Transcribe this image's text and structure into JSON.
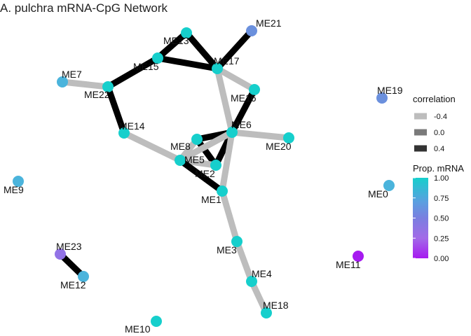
{
  "title": "A. pulchra mRNA-CpG Network",
  "legend": {
    "correlation": {
      "title": "correlation",
      "items": [
        {
          "label": "-0.4",
          "color": "#bdbdbd"
        },
        {
          "label": "0.0",
          "color": "#7a7a7a"
        },
        {
          "label": "0.4",
          "color": "#333333"
        }
      ]
    },
    "prop_mrna": {
      "title": "Prop. mRNA",
      "ticks": [
        "1.00",
        "0.75",
        "0.50",
        "0.25",
        "0.00"
      ],
      "colors": {
        "high": "#16cfcc",
        "mid_high": "#5b9fe0",
        "mid": "#7a7fe0",
        "mid_low": "#a26ae8",
        "low": "#a61af0"
      }
    }
  },
  "nodes": [
    {
      "id": "ME13",
      "prop": 1.0
    },
    {
      "id": "ME21",
      "prop": 0.75
    },
    {
      "id": "ME15",
      "prop": 1.0
    },
    {
      "id": "ME17",
      "prop": 1.0
    },
    {
      "id": "ME7",
      "prop": 0.9
    },
    {
      "id": "ME22",
      "prop": 1.0
    },
    {
      "id": "ME16",
      "prop": 1.0
    },
    {
      "id": "ME19",
      "prop": 0.75
    },
    {
      "id": "ME6",
      "prop": 1.0
    },
    {
      "id": "ME14",
      "prop": 1.0
    },
    {
      "id": "ME20",
      "prop": 1.0
    },
    {
      "id": "ME8",
      "prop": 1.0
    },
    {
      "id": "ME5",
      "prop": 1.0
    },
    {
      "id": "ME2",
      "prop": 1.0
    },
    {
      "id": "ME9",
      "prop": 0.9
    },
    {
      "id": "ME0",
      "prop": 0.85
    },
    {
      "id": "ME1",
      "prop": 1.0
    },
    {
      "id": "ME3",
      "prop": 1.0
    },
    {
      "id": "ME23",
      "prop": 0.6
    },
    {
      "id": "ME11",
      "prop": 0.0
    },
    {
      "id": "ME4",
      "prop": 1.0
    },
    {
      "id": "ME12",
      "prop": 0.85
    },
    {
      "id": "ME18",
      "prop": 1.0
    },
    {
      "id": "ME10",
      "prop": 1.0
    }
  ],
  "edges": [
    {
      "from": "ME13",
      "to": "ME15",
      "corr": 0.4
    },
    {
      "from": "ME13",
      "to": "ME17",
      "corr": 0.4
    },
    {
      "from": "ME15",
      "to": "ME17",
      "corr": 0.4
    },
    {
      "from": "ME21",
      "to": "ME17",
      "corr": 0.4
    },
    {
      "from": "ME15",
      "to": "ME22",
      "corr": 0.4
    },
    {
      "from": "ME7",
      "to": "ME22",
      "corr": -0.4
    },
    {
      "from": "ME22",
      "to": "ME14",
      "corr": 0.4
    },
    {
      "from": "ME17",
      "to": "ME16",
      "corr": -0.4
    },
    {
      "from": "ME17",
      "to": "ME6",
      "corr": -0.4
    },
    {
      "from": "ME16",
      "to": "ME6",
      "corr": 0.4
    },
    {
      "from": "ME6",
      "to": "ME20",
      "corr": -0.4
    },
    {
      "from": "ME14",
      "to": "ME5",
      "corr": -0.4
    },
    {
      "from": "ME8",
      "to": "ME6",
      "corr": 0.4
    },
    {
      "from": "ME8",
      "to": "ME2",
      "corr": 0.4
    },
    {
      "from": "ME6",
      "to": "ME2",
      "corr": 0.4
    },
    {
      "from": "ME6",
      "to": "ME5",
      "corr": -0.4
    },
    {
      "from": "ME6",
      "to": "ME1",
      "corr": -0.4
    },
    {
      "from": "ME8",
      "to": "ME5",
      "corr": -0.4
    },
    {
      "from": "ME5",
      "to": "ME2",
      "corr": -0.4
    },
    {
      "from": "ME5",
      "to": "ME1",
      "corr": 0.4
    },
    {
      "from": "ME1",
      "to": "ME3",
      "corr": -0.4
    },
    {
      "from": "ME3",
      "to": "ME4",
      "corr": -0.4
    },
    {
      "from": "ME4",
      "to": "ME18",
      "corr": -0.4
    },
    {
      "from": "ME23",
      "to": "ME12",
      "corr": 0.4
    }
  ]
}
